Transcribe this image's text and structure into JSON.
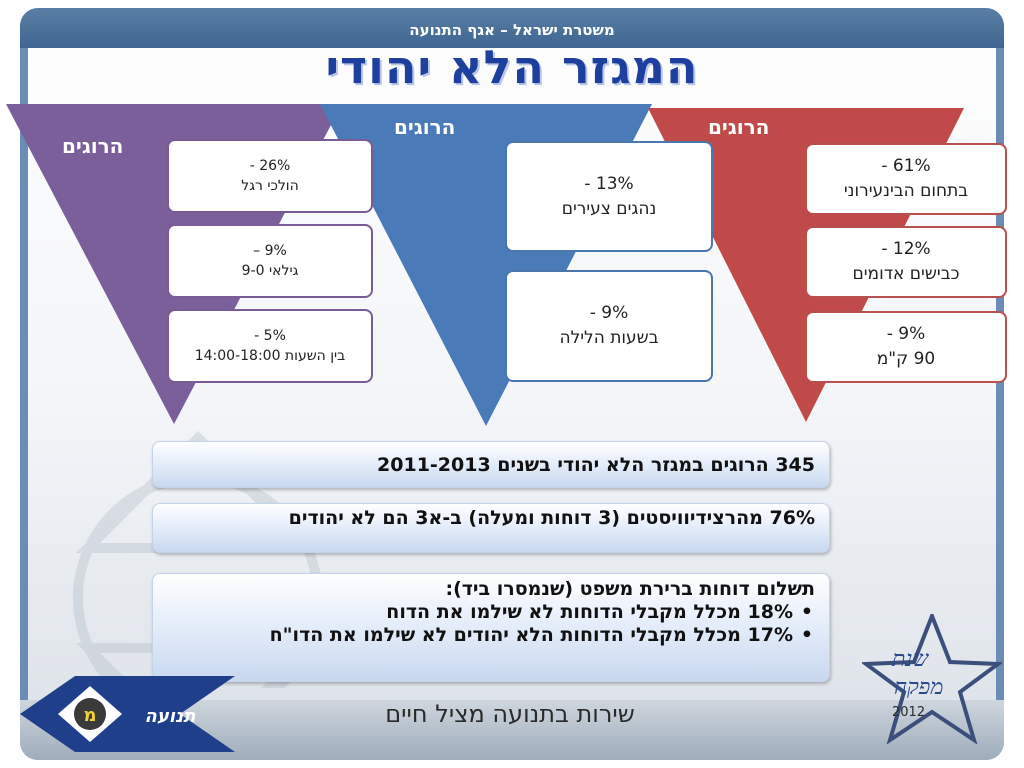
{
  "header": {
    "top_text": "משטרת ישראל – אגף התנועה",
    "title": "המגזר הלא יהודי"
  },
  "triangles": [
    {
      "label": "הרוגים",
      "color": "#7b5f9a",
      "boxes": [
        {
          "l1": "26% -",
          "l2": "הולכי רגל"
        },
        {
          "l1": "9% –",
          "l2": "גילאי 9-0"
        },
        {
          "l1": "5% -",
          "l2": "בין השעות 14:00-18:00"
        }
      ]
    },
    {
      "label": "הרוגים",
      "color": "#4a7bb8",
      "boxes": [
        {
          "l1": "13% -",
          "l2": "נהגים צעירים"
        },
        {
          "l1": "9% -",
          "l2": "בשעות הלילה"
        }
      ]
    },
    {
      "label": "הרוגים",
      "color": "#c04a4a",
      "boxes": [
        {
          "l1": "61% -",
          "l2": "בתחום הבינעירוני"
        },
        {
          "l1": "12% -",
          "l2": "כבישים אדומים"
        },
        {
          "l1": "9% -",
          "l2": "90 ק\"מ"
        }
      ]
    }
  ],
  "stats": {
    "s1": "345 הרוגים במגזר הלא יהודי בשנים 2011-2013",
    "s2": "76% מהרצידיוויסטים (3 דוחות ומעלה) ב-א3 הם לא יהודים",
    "s3_head": "תשלום דוחות ברירת משפט (שנמסרו ביד):",
    "s3_items": [
      "18% מכלל מקבלי הדוחות לא שילמו את הדוח",
      "17% מכלל מקבלי הדוחות הלא יהודים לא שילמו את הדו\"ח"
    ]
  },
  "footer": {
    "motto": "שירות בתנועה מציל חיים",
    "logo_left": "תנועה",
    "logo_left_letter": "מ",
    "logo_right_line1": "שנת",
    "logo_right_line2": "מפקח",
    "logo_right_year": "2012"
  }
}
